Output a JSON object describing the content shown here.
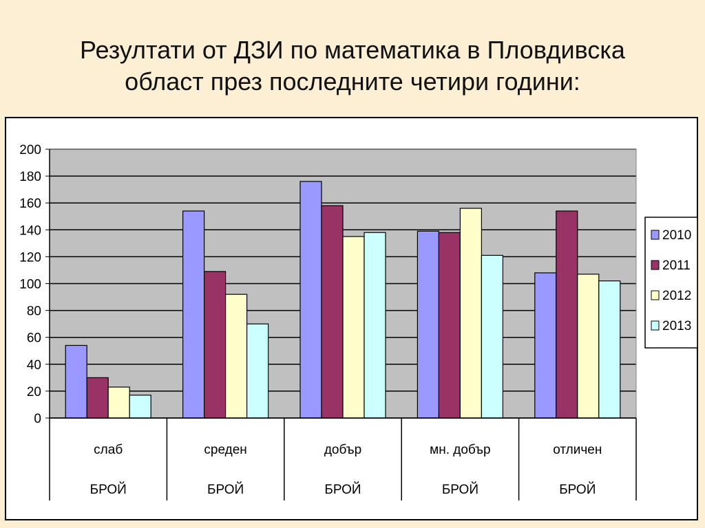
{
  "slide": {
    "title_line1": "Резултати от ДЗИ по математика в Пловдивска",
    "title_line2": "област през последните четири години:"
  },
  "chart_data": {
    "type": "bar",
    "categories": [
      "слаб",
      "среден",
      "добър",
      "мн. добър",
      "отличен"
    ],
    "category_sublabels": [
      "БРОЙ",
      "БРОЙ",
      "БРОЙ",
      "БРОЙ",
      "БРОЙ"
    ],
    "series": [
      {
        "name": "2010",
        "color": "#9999ff",
        "values": [
          54,
          154,
          176,
          139,
          108
        ]
      },
      {
        "name": "2011",
        "color": "#993366",
        "values": [
          30,
          109,
          158,
          138,
          154
        ]
      },
      {
        "name": "2012",
        "color": "#ffffcc",
        "values": [
          23,
          92,
          135,
          156,
          107
        ]
      },
      {
        "name": "2013",
        "color": "#ccffff",
        "values": [
          17,
          70,
          138,
          121,
          102
        ]
      }
    ],
    "y_ticks": [
      "0",
      "20",
      "40",
      "60",
      "80",
      "100",
      "120",
      "140",
      "160",
      "180",
      "200"
    ],
    "ylim": [
      0,
      200
    ],
    "grid": true,
    "plot_background": "#c0c0c0",
    "legend_position": "right"
  }
}
